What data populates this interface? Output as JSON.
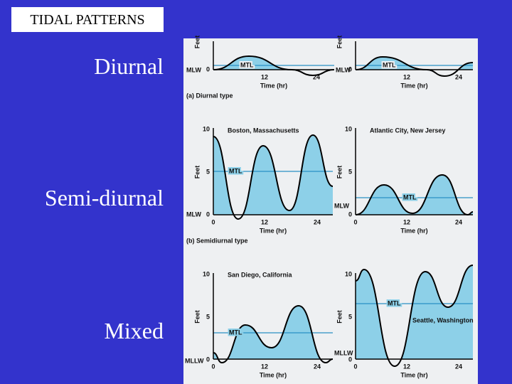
{
  "title": "TIDAL PATTERNS",
  "labels": [
    "Diurnal",
    "Semi-diurnal",
    "Mixed"
  ],
  "panels": [
    {
      "y_label": "Feet",
      "datum": "MLW",
      "y_ticks": [
        0
      ],
      "x_ticks": [
        12,
        24
      ],
      "x_label": "Time (hr)",
      "mtl": "MTL",
      "caption": "(a) Diurnal type"
    },
    {
      "y_label": "Feet",
      "datum": "MLW",
      "y_ticks": [
        0
      ],
      "x_ticks": [
        12,
        24
      ],
      "x_label": "Time (hr)",
      "mtl": "MTL"
    },
    {
      "y_label": "Feet",
      "datum": "MLW",
      "y_ticks": [
        10,
        5,
        0
      ],
      "x_ticks": [
        0,
        12,
        24
      ],
      "x_label": "Time (hr)",
      "mtl": "MTL",
      "location": "Boston, Massachusetts",
      "caption": "(b) Semidiurnal type"
    },
    {
      "y_label": "Feet",
      "datum": "MLW",
      "y_ticks": [
        10,
        5,
        0
      ],
      "x_ticks": [
        0,
        12,
        24
      ],
      "x_label": "Time (hr)",
      "mtl": "MTL",
      "location": "Atlantic City, New Jersey"
    },
    {
      "y_label": "Feet",
      "datum": "MLLW",
      "y_ticks": [
        10,
        5,
        0
      ],
      "x_ticks": [
        0,
        12,
        24
      ],
      "x_label": "Time (hr)",
      "mtl": "MTL",
      "location": "San Diego, California"
    },
    {
      "y_label": "Feet",
      "datum": "MLLW",
      "y_ticks": [
        10,
        5,
        0
      ],
      "x_ticks": [
        0,
        12,
        24
      ],
      "x_label": "Time (hr)",
      "mtl": "MTL",
      "location": "Seattle, Washington"
    }
  ]
}
